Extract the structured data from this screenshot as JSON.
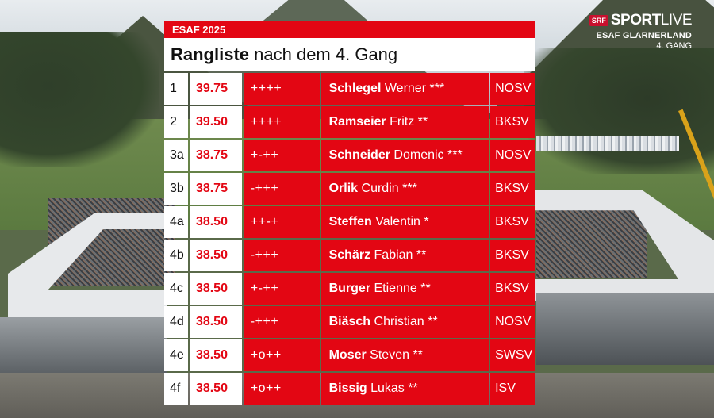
{
  "broadcast": {
    "badge": "SRF",
    "brand_main": "SPORT",
    "brand_live": "LIVE",
    "event_line": "ESAF GLARNERLAND",
    "round_line": "4. GANG"
  },
  "panel": {
    "event_label": "ESAF 2025",
    "title_strong": "Rangliste",
    "title_rest": " nach dem 4. Gang",
    "accent_color": "#e30613"
  },
  "rows": [
    {
      "rank": "1",
      "points": "39.75",
      "marks": "++++",
      "last": "Schlegel",
      "first": "Werner",
      "stars": "***",
      "club": "NOSV"
    },
    {
      "rank": "2",
      "points": "39.50",
      "marks": "++++",
      "last": "Ramseier",
      "first": "Fritz",
      "stars": "**",
      "club": "BKSV"
    },
    {
      "rank": "3a",
      "points": "38.75",
      "marks": "+-++",
      "last": "Schneider",
      "first": "Domenic",
      "stars": "***",
      "club": "NOSV"
    },
    {
      "rank": "3b",
      "points": "38.75",
      "marks": "-+++",
      "last": "Orlik",
      "first": "Curdin",
      "stars": "***",
      "club": "BKSV"
    },
    {
      "rank": "4a",
      "points": "38.50",
      "marks": "++-+",
      "last": "Steffen",
      "first": "Valentin",
      "stars": "*",
      "club": "BKSV"
    },
    {
      "rank": "4b",
      "points": "38.50",
      "marks": "-+++",
      "last": "Schärz",
      "first": "Fabian",
      "stars": "**",
      "club": "BKSV"
    },
    {
      "rank": "4c",
      "points": "38.50",
      "marks": "+-++",
      "last": "Burger",
      "first": "Etienne",
      "stars": "**",
      "club": "BKSV"
    },
    {
      "rank": "4d",
      "points": "38.50",
      "marks": "-+++",
      "last": "Biäsch",
      "first": "Christian",
      "stars": "**",
      "club": "NOSV"
    },
    {
      "rank": "4e",
      "points": "38.50",
      "marks": "+o++",
      "last": "Moser",
      "first": "Steven",
      "stars": "**",
      "club": "SWSV"
    },
    {
      "rank": "4f",
      "points": "38.50",
      "marks": "+o++",
      "last": "Bissig",
      "first": "Lukas",
      "stars": "**",
      "club": "ISV"
    }
  ]
}
